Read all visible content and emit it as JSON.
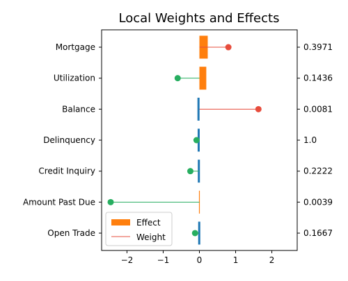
{
  "chart_data": {
    "type": "bar",
    "orientation": "horizontal",
    "title": "Local Weights and Effects",
    "xlim": [
      -2.7,
      2.7
    ],
    "x_ticks": [
      -2,
      -1,
      0,
      1,
      2
    ],
    "x_tick_labels": [
      "−2",
      "−1",
      "0",
      "1",
      "2"
    ],
    "grid": false,
    "legend_placement": "lower-left",
    "categories": [
      "Mortgage",
      "Utilization",
      "Balance",
      "Delinquency",
      "Credit Inquiry",
      "Amount Past Due",
      "Open Trade"
    ],
    "right_labels": [
      "0.3971",
      "0.1436",
      "0.0081",
      "1.0",
      "0.2222",
      "0.0039",
      "0.1667"
    ],
    "series": [
      {
        "name": "Effect",
        "kind": "bar",
        "values": [
          0.23,
          0.19,
          -0.05,
          -0.04,
          -0.03,
          0.005,
          -0.01
        ],
        "colors": [
          "#ff7f0e",
          "#ff7f0e",
          "#1f77b4",
          "#1f77b4",
          "#1f77b4",
          "#ff7f0e",
          "#1f77b4"
        ]
      },
      {
        "name": "Weight",
        "kind": "lollipop",
        "values": [
          0.8,
          -0.6,
          1.63,
          -0.08,
          -0.25,
          -2.45,
          -0.12
        ],
        "positive_color": "#e74c3c",
        "negative_color": "#27ae60"
      }
    ],
    "legend": [
      {
        "label": "Effect",
        "color": "#ff7f0e",
        "marker": "patch"
      },
      {
        "label": "Weight",
        "color": "#e74c3c",
        "marker": "line"
      }
    ]
  }
}
